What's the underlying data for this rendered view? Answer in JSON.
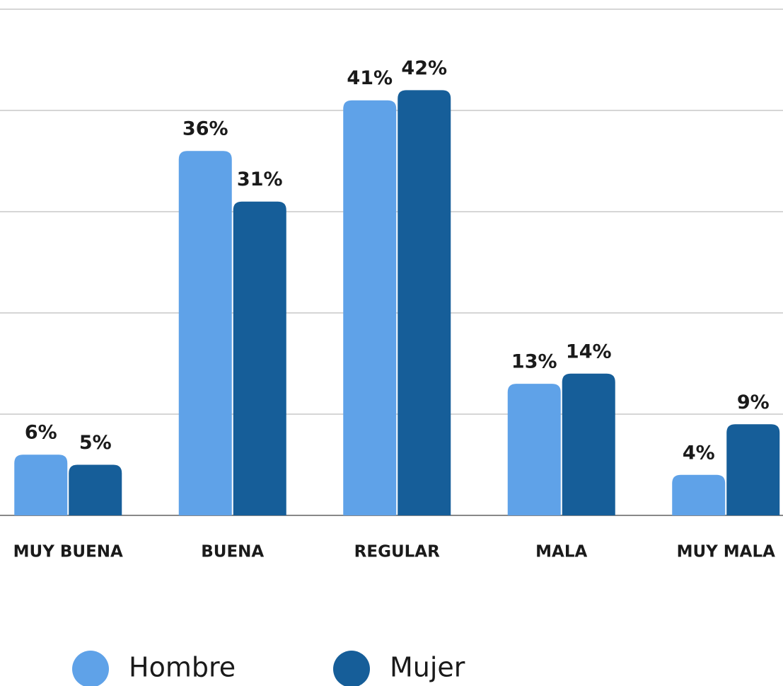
{
  "chart_data": {
    "type": "bar",
    "categories": [
      "MUY BUENA",
      "BUENA",
      "REGULAR",
      "MALA",
      "MUY MALA"
    ],
    "series": [
      {
        "name": "Hombre",
        "color": "#5fa2e8",
        "values": [
          6,
          36,
          41,
          13,
          4
        ],
        "value_labels": [
          "6%",
          "36%",
          "41%",
          "13%",
          "4%"
        ]
      },
      {
        "name": "Mujer",
        "color": "#165e99",
        "values": [
          5,
          31,
          42,
          14,
          9
        ],
        "value_labels": [
          "5%",
          "31%",
          "42%",
          "14%",
          "9%"
        ]
      }
    ],
    "ylim": [
      0,
      50
    ],
    "yticks": [
      0,
      10,
      20,
      30,
      40,
      50
    ],
    "grid": true,
    "show_tick_labels": false,
    "legend": "bottom"
  }
}
